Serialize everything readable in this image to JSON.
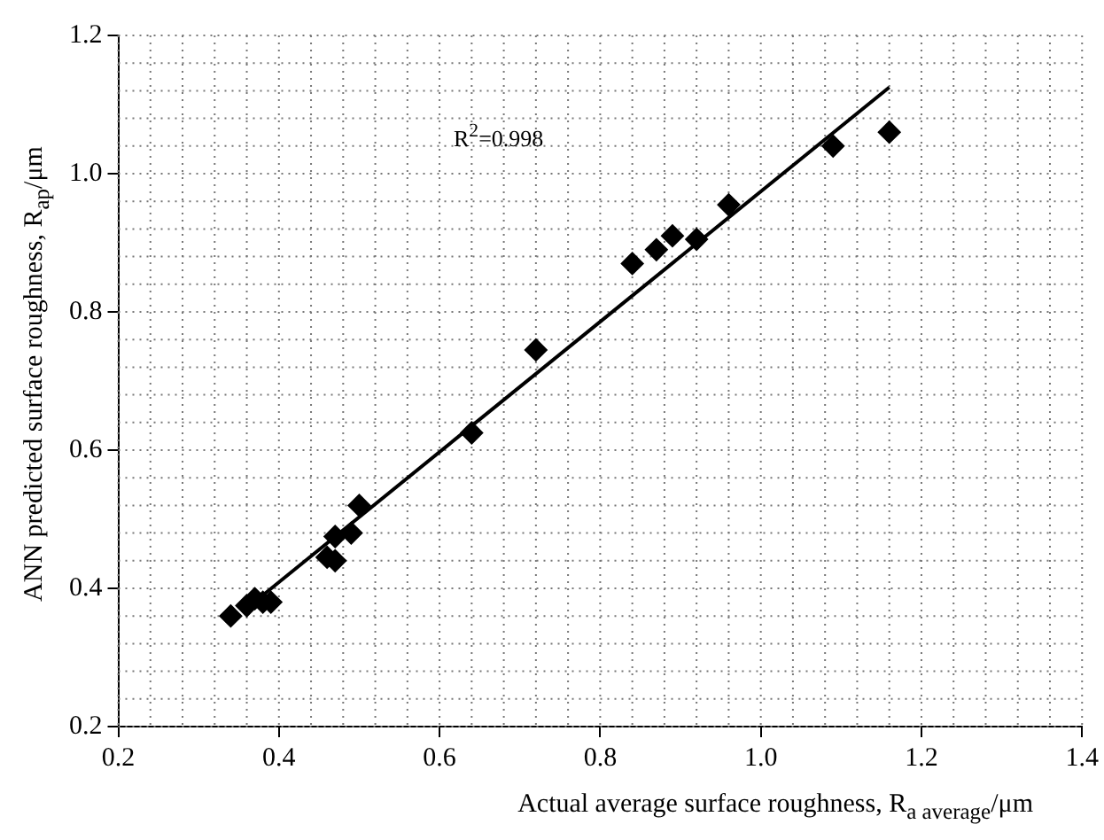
{
  "chart_data": {
    "type": "scatter",
    "xlabel": "Actual average surface roughness, R$_{a average}$/μm",
    "ylabel": "ANN predicted surface roughness, R$_{ap}$/μm",
    "annotations": [
      "R$^{2}$=0.998"
    ],
    "series": [
      {
        "color": "#000000",
        "marker": "diamond",
        "x": [
          0.34,
          0.36,
          0.37,
          0.38,
          0.39,
          0.46,
          0.47,
          0.47,
          0.49,
          0.5,
          0.64,
          0.72,
          0.84,
          0.87,
          0.89,
          0.92,
          0.96,
          1.09,
          1.16
        ],
        "values": [
          0.36,
          0.375,
          0.385,
          0.38,
          0.38,
          0.445,
          0.44,
          0.475,
          0.48,
          0.52,
          0.625,
          0.745,
          0.87,
          0.89,
          0.91,
          0.905,
          0.955,
          1.04,
          1.06
        ]
      },
      {
        "type": "line",
        "color": "#000000",
        "marker": "none",
        "x": [
          0.38,
          1.16
        ],
        "values": [
          0.39,
          1.125
        ]
      }
    ],
    "xlim": [
      0.2,
      1.4
    ],
    "xticks": [
      0.2,
      0.4,
      0.6,
      0.8,
      {
        "value": 1,
        "label": "1.0"
      },
      1.2,
      1.4
    ],
    "ylim": [
      0.2,
      1.2
    ],
    "yticks": [
      0.2,
      0.4,
      0.6,
      0.8,
      {
        "value": 1,
        "label": "1.0"
      },
      1.2
    ],
    "grid": true,
    "legend": false
  }
}
